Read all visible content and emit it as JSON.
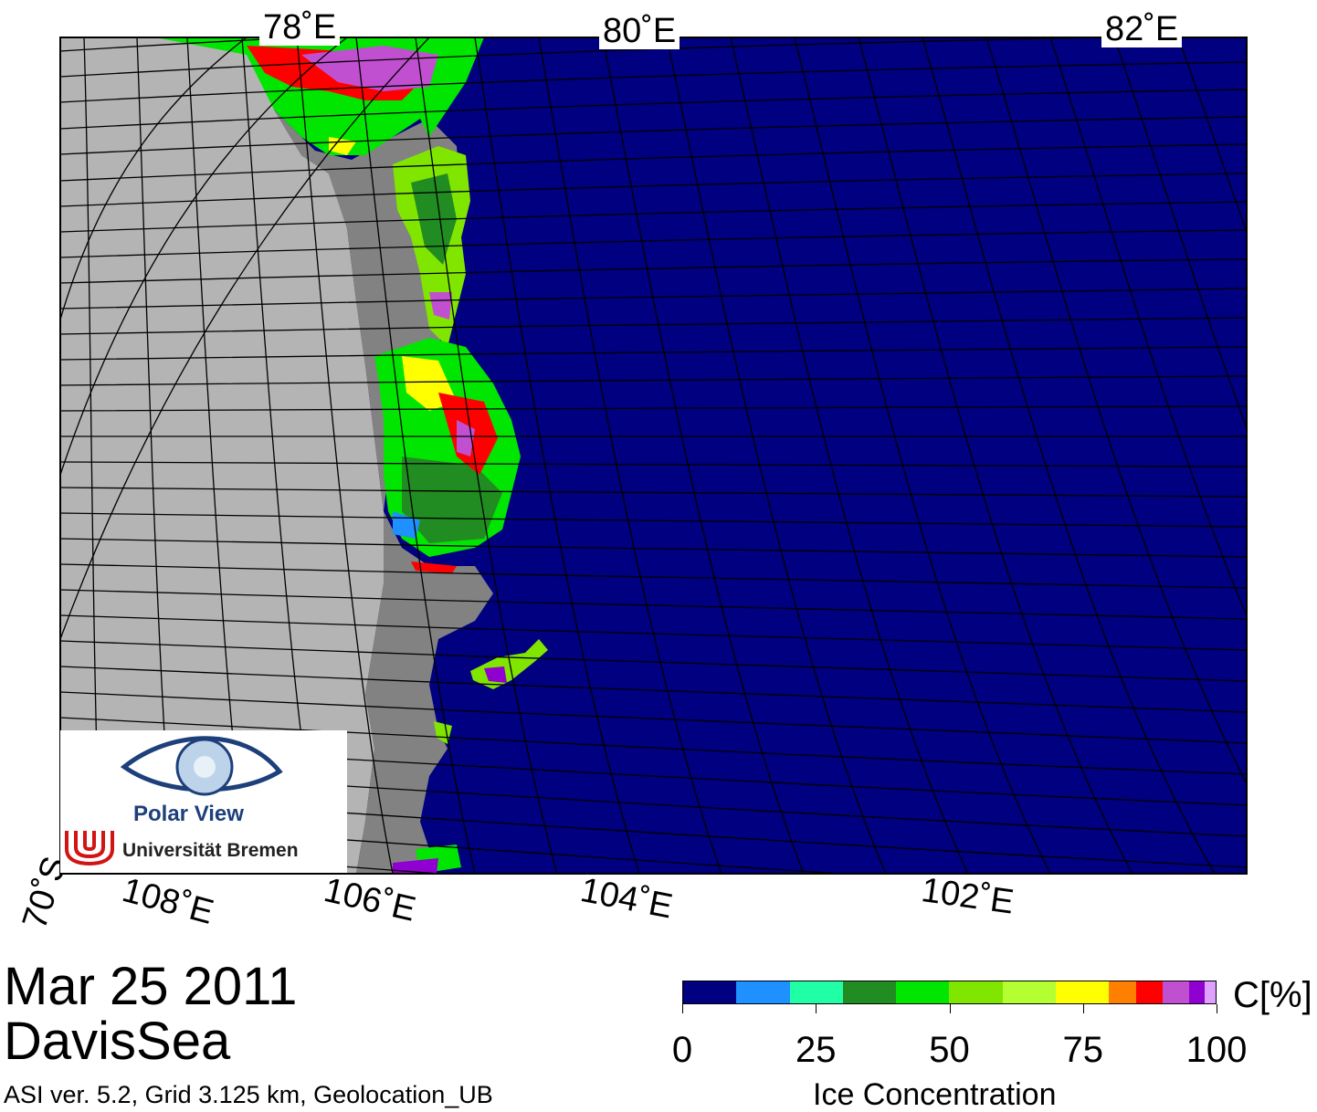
{
  "map": {
    "lon_labels_top": [
      "78˚E",
      "80˚E",
      "82˚E"
    ],
    "lon_labels_bottom": [
      "108˚E",
      "106˚E",
      "104˚E",
      "102˚E"
    ],
    "lat_label": "70˚S",
    "colors": {
      "ocean": "#000080",
      "land_ice": "#b4b4b4",
      "land_shelf": "#828282"
    }
  },
  "logo": {
    "line1": "Polar View",
    "line2": "Universität Bremen"
  },
  "footer": {
    "date": "Mar 25 2011",
    "region": "DavisSea",
    "meta": "ASI ver. 5.2,  Grid 3.125 km, Geolocation_UB"
  },
  "colorbar": {
    "title": "Ice Concentration",
    "unit": "C[%]",
    "tick_labels": [
      "0",
      "25",
      "50",
      "75",
      "100"
    ],
    "tick_values": [
      0,
      25,
      50,
      75,
      100
    ],
    "segments": [
      {
        "from": 0,
        "to": 10,
        "color": "#000080"
      },
      {
        "from": 10,
        "to": 20,
        "color": "#1e90ff"
      },
      {
        "from": 20,
        "to": 30,
        "color": "#20ffa6"
      },
      {
        "from": 30,
        "to": 40,
        "color": "#218c21"
      },
      {
        "from": 40,
        "to": 50,
        "color": "#00e600"
      },
      {
        "from": 50,
        "to": 60,
        "color": "#80e600"
      },
      {
        "from": 60,
        "to": 70,
        "color": "#b4ff32"
      },
      {
        "from": 70,
        "to": 80,
        "color": "#ffff00"
      },
      {
        "from": 80,
        "to": 85,
        "color": "#ff8000"
      },
      {
        "from": 85,
        "to": 90,
        "color": "#ff0000"
      },
      {
        "from": 90,
        "to": 95,
        "color": "#c050d0"
      },
      {
        "from": 95,
        "to": 98,
        "color": "#9000d0"
      },
      {
        "from": 98,
        "to": 100,
        "color": "#e0a0ff"
      }
    ]
  }
}
